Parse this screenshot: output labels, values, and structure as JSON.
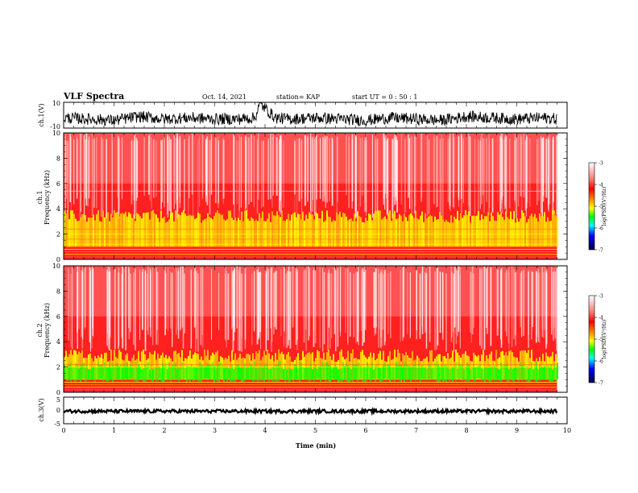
{
  "header": {
    "title": "VLF Spectra",
    "date": "Oct. 14, 2021",
    "station": "station= KAP",
    "start": "start  UT =   0  : 50 : 1"
  },
  "chart_data": [
    {
      "type": "line",
      "panel": "ch1-waveform",
      "ylabel": "ch.1(V)",
      "ylim": [
        -10,
        10
      ],
      "yticks": [
        "10",
        "-10"
      ],
      "xlim": [
        0,
        10
      ],
      "series": [
        {
          "x": [
            0,
            0.5,
            1.0,
            1.5,
            2.0,
            2.5,
            3.0,
            3.5,
            3.8,
            3.9,
            4.2,
            4.5,
            5.0,
            5.5,
            6.0,
            6.5,
            7.0,
            7.5,
            8.0,
            8.5,
            9.0,
            9.5,
            9.8
          ],
          "values": [
            -2,
            -3,
            -4,
            -1,
            -3,
            -2,
            -3,
            -3,
            -2,
            9,
            -2,
            -3,
            -2,
            -3,
            -4,
            -2,
            -3,
            -4,
            -1,
            -2,
            -3,
            -2,
            -3
          ]
        }
      ],
      "color": "#000000"
    },
    {
      "type": "heatmap",
      "panel": "ch1-spectrogram",
      "ylabel": "Frequency  (kHz)",
      "ylabel_channel": "ch.1",
      "ylim": [
        0,
        10
      ],
      "yticks": [
        "0",
        "2",
        "4",
        "6",
        "8",
        "10"
      ],
      "xlim": [
        0,
        10
      ],
      "xlabel": "",
      "yellow_band_top_khz": 3.5,
      "colorbar": {
        "label": "log(PSD)(V²/Hz)",
        "ticks": [
          "-3",
          "-4",
          "-5",
          "-6",
          "-7"
        ],
        "range": [
          -7,
          -3
        ]
      }
    },
    {
      "type": "heatmap",
      "panel": "ch2-spectrogram",
      "ylabel": "Frequency  (kHz)",
      "ylabel_channel": "ch.2",
      "ylim": [
        0,
        10
      ],
      "yticks": [
        "0",
        "2",
        "4",
        "6",
        "8",
        "10"
      ],
      "xlim": [
        0,
        10
      ],
      "yellow_band_top_khz": 3.0,
      "colorbar": {
        "label": "log(PSD)(V²/Hz)",
        "ticks": [
          "-3",
          "-4",
          "-5",
          "-6",
          "-7"
        ],
        "range": [
          -7,
          -3
        ]
      }
    },
    {
      "type": "line",
      "panel": "ch3-waveform",
      "ylabel": "ch.3(V)",
      "ylim": [
        -5,
        5
      ],
      "yticks": [
        "5",
        "0",
        "-5"
      ],
      "xlim": [
        0,
        10
      ],
      "xlabel": "Time  (min)",
      "xticks": [
        "0",
        "1",
        "2",
        "3",
        "4",
        "5",
        "6",
        "7",
        "8",
        "9",
        "10"
      ],
      "series": [
        {
          "x": [
            0,
            10
          ],
          "values": [
            -0.3,
            -0.3
          ]
        }
      ],
      "color": "#000000"
    }
  ],
  "colors": {
    "background": "#ffffff",
    "spectrogram_bg": "#ff2020",
    "high_psd": "#ff0000",
    "mid_psd": "#ffff00",
    "low_psd": "#00ff00",
    "trace": "#000000"
  }
}
